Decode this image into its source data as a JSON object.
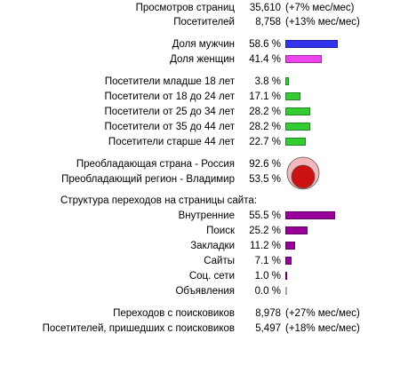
{
  "traffic": {
    "page_views": {
      "label": "Просмотров страниц",
      "value": "35,610",
      "change": "(+7% мес/мес)"
    },
    "visitors": {
      "label": "Посетителей",
      "value": "8,758",
      "change": "(+13% мес/мес)"
    }
  },
  "gender": [
    {
      "label": "Доля мужчин",
      "value": "58.6 %",
      "pct": 58.6,
      "color": "#3333ee"
    },
    {
      "label": "Доля женщин",
      "value": "41.4 %",
      "pct": 41.4,
      "color": "#ee44ee"
    }
  ],
  "age": [
    {
      "label": "Посетители младше 18 лет",
      "value": "3.8 %",
      "pct": 3.8
    },
    {
      "label": "Посетители от 18 до 24 лет",
      "value": "17.1 %",
      "pct": 17.1
    },
    {
      "label": "Посетители от 25 до 34 лет",
      "value": "28.2 %",
      "pct": 28.2
    },
    {
      "label": "Посетители от 35 до 44 лет",
      "value": "28.2 %",
      "pct": 28.2
    },
    {
      "label": "Посетители старше 44 лет",
      "value": "22.7 %",
      "pct": 22.7
    }
  ],
  "age_color": "#33cc33",
  "geo": {
    "country": {
      "label": "Преобладающая страна - Россия",
      "value": "92.6 %",
      "pct": 92.6
    },
    "region": {
      "label": "Преобладающий регион - Владимир",
      "value": "53.5 %",
      "pct": 53.5
    },
    "outer_color": "#f4b8bc",
    "inner_color": "#cc1111"
  },
  "referrals": {
    "heading": "Структура переходов на страницы сайта:",
    "items": [
      {
        "label": "Внутренние",
        "value": "55.5 %",
        "pct": 55.5
      },
      {
        "label": "Поиск",
        "value": "25.2 %",
        "pct": 25.2
      },
      {
        "label": "Закладки",
        "value": "11.2 %",
        "pct": 11.2
      },
      {
        "label": "Сайты",
        "value": "7.1 %",
        "pct": 7.1
      },
      {
        "label": "Соц. сети",
        "value": "1.0 %",
        "pct": 1.0
      },
      {
        "label": "Объявления",
        "value": "0.0 %",
        "pct": 0.0
      }
    ],
    "color": "#990099"
  },
  "search": {
    "transitions": {
      "label": "Переходов с поисковиков",
      "value": "8,978",
      "change": "(+27% мес/мес)"
    },
    "visitors": {
      "label": "Посетителей, пришедших с поисковиков",
      "value": "5,497",
      "change": "(+18% мес/мес)"
    }
  }
}
